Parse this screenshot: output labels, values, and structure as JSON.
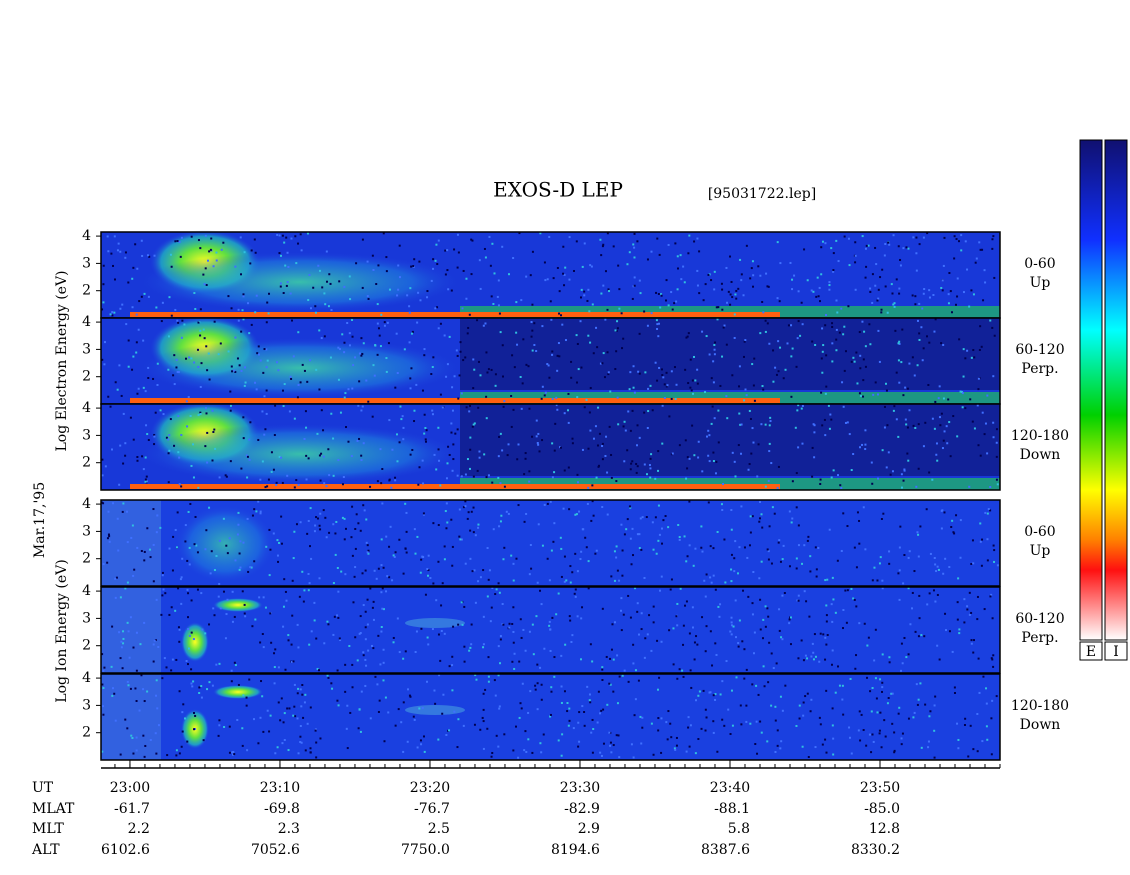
{
  "title": "EXOS-D LEP",
  "file": "[95031722.lep]",
  "date": "Mar.17,'95",
  "electron_ylabel": "Log Electron Energy (eV)",
  "ion_ylabel": "Log Ion Energy (eV)",
  "colorbar_labels": [
    "E",
    "I"
  ],
  "ylim": [
    1,
    4.15
  ],
  "yticks": [
    2,
    3,
    4
  ],
  "xlim": [
    1378.07,
    1438
  ],
  "panels": [
    {
      "species": "electron",
      "angle": "0-60",
      "direction": "Up"
    },
    {
      "species": "electron",
      "angle": "60-120",
      "direction": "Perp."
    },
    {
      "species": "electron",
      "angle": "120-180",
      "direction": "Down"
    },
    {
      "species": "ion",
      "angle": "0-60",
      "direction": "Up"
    },
    {
      "species": "ion",
      "angle": "60-120",
      "direction": "Perp."
    },
    {
      "species": "ion",
      "angle": "120-180",
      "direction": "Down"
    }
  ],
  "xticks": [
    {
      "value": 1380,
      "label": "23:00"
    },
    {
      "value": 1390,
      "label": "23:10"
    },
    {
      "value": 1400,
      "label": "23:20"
    },
    {
      "value": 1410,
      "label": "23:30"
    },
    {
      "value": 1420,
      "label": "23:40"
    },
    {
      "value": 1430,
      "label": "23:50"
    }
  ],
  "ephemeris": [
    {
      "name": "UT",
      "values": []
    },
    {
      "name": "MLAT",
      "values": [
        "-61.7",
        "-69.8",
        "-76.7",
        "-82.9",
        "-88.1",
        "-85.0"
      ]
    },
    {
      "name": "MLT",
      "values": [
        "2.2",
        "2.3",
        "2.5",
        "2.9",
        "5.8",
        "12.8"
      ]
    },
    {
      "name": "ALT",
      "values": [
        "6102.6",
        "7052.6",
        "7750.0",
        "8194.6",
        "8387.6",
        "8330.2"
      ]
    }
  ]
}
